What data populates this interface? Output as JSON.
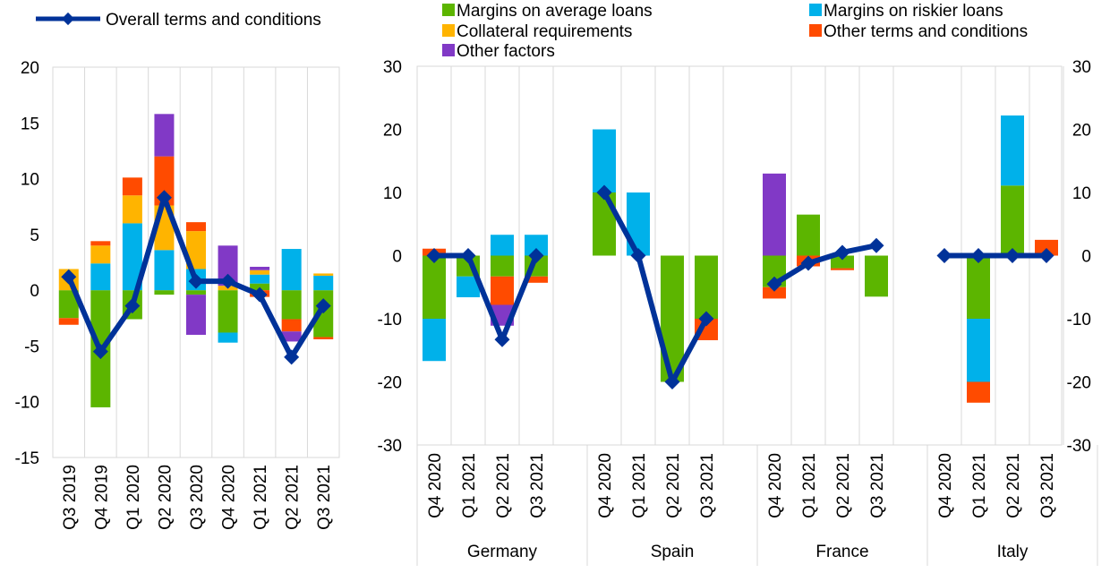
{
  "legend": {
    "line": "Overall terms and conditions",
    "items": [
      {
        "label": "Margins on average loans",
        "color": "#5cb500"
      },
      {
        "label": "Margins on riskier loans",
        "color": "#00b1ea"
      },
      {
        "label": "Collateral requirements",
        "color": "#ffb400"
      },
      {
        "label": "Other terms and conditions",
        "color": "#ff4b00"
      },
      {
        "label": "Other factors",
        "color": "#8139c6"
      }
    ]
  },
  "colors": {
    "margins_average": "#5cb500",
    "margins_riskier": "#00b1ea",
    "collateral": "#ffb400",
    "other_terms": "#ff4b00",
    "other_factors": "#8139c6",
    "line": "#003299"
  },
  "chart_data": [
    {
      "type": "bar",
      "stacked": true,
      "categories": [
        "Q3 2019",
        "Q4 2019",
        "Q1 2020",
        "Q2 2020",
        "Q3 2020",
        "Q4 2020",
        "Q1 2021",
        "Q2 2021",
        "Q3 2021"
      ],
      "ylim": [
        -15,
        20
      ],
      "yticks": [
        "-15",
        "-10",
        "-5",
        "0",
        "5",
        "10",
        "15",
        "20"
      ],
      "series": [
        {
          "name": "Margins on average loans",
          "values": [
            -2.5,
            -10.5,
            -2.6,
            -0.4,
            -0.4,
            -3.8,
            0.6,
            -2.6,
            -4.2
          ]
        },
        {
          "name": "Margins on riskier loans",
          "values": [
            0,
            2.4,
            6.0,
            3.6,
            1.9,
            -0.9,
            0.8,
            3.7,
            1.3
          ]
        },
        {
          "name": "Collateral requirements",
          "values": [
            1.9,
            1.6,
            2.5,
            4.0,
            3.4,
            0.4,
            0.4,
            0,
            0.2
          ]
        },
        {
          "name": "Other terms and conditions",
          "values": [
            -0.6,
            0.4,
            1.6,
            4.4,
            0.8,
            0,
            -0.6,
            -1.1,
            -0.2
          ]
        },
        {
          "name": "Other factors",
          "values": [
            0,
            0,
            0,
            3.8,
            -3.6,
            3.6,
            0.3,
            -0.9,
            0
          ]
        }
      ],
      "line": {
        "name": "Overall terms and conditions",
        "values": [
          1.2,
          -5.5,
          -1.4,
          8.3,
          0.8,
          0.8,
          -0.4,
          -6.0,
          -1.4
        ]
      }
    },
    {
      "type": "bar",
      "stacked": true,
      "ylim": [
        -30,
        30
      ],
      "yticks": [
        "-30",
        "-20",
        "-10",
        "0",
        "10",
        "20",
        "30"
      ],
      "groups": [
        {
          "name": "Germany",
          "categories": [
            "Q4 2020",
            "Q1 2021",
            "Q2 2021",
            "Q3 2021"
          ]
        },
        {
          "name": "Spain",
          "categories": [
            "Q4 2020",
            "Q1 2021",
            "Q2 2021",
            "Q3 2021"
          ]
        },
        {
          "name": "France",
          "categories": [
            "Q4 2020",
            "Q1 2021",
            "Q2 2021",
            "Q3 2021"
          ]
        },
        {
          "name": "Italy",
          "categories": [
            "Q4 2020",
            "Q1 2021",
            "Q2 2021",
            "Q3 2021"
          ]
        }
      ],
      "series": [
        {
          "name": "Margins on average loans",
          "values": [
            -10,
            -3.3,
            -3.3,
            -3.3,
            10,
            0,
            -20,
            -10,
            -5,
            6.5,
            -2,
            -6.5,
            0,
            -10,
            11.1,
            0
          ]
        },
        {
          "name": "Margins on riskier loans",
          "values": [
            -6.7,
            -3.3,
            3.3,
            3.3,
            10,
            10,
            0,
            0,
            0,
            0,
            0,
            0,
            0,
            -10,
            11.1,
            0
          ]
        },
        {
          "name": "Collateral requirements",
          "values": [
            0,
            0,
            0,
            0,
            0,
            0,
            0,
            0,
            0,
            0,
            0,
            0,
            0,
            0,
            0,
            0
          ]
        },
        {
          "name": "Other terms and conditions",
          "values": [
            1.1,
            0,
            -4.5,
            -1.0,
            0,
            0,
            0,
            -3.4,
            -1.8,
            -1.7,
            -0.3,
            0,
            0,
            -3.3,
            0,
            2.5
          ]
        },
        {
          "name": "Other factors",
          "values": [
            0,
            0,
            -3.3,
            0,
            0,
            0,
            0,
            0,
            13,
            0,
            0,
            0,
            0,
            0,
            0,
            0
          ]
        }
      ],
      "line": {
        "name": "Overall terms and conditions",
        "values": [
          0,
          0,
          -13.3,
          0,
          10,
          0,
          -20,
          -10,
          -4.5,
          -1.2,
          0.5,
          1.6,
          0,
          0,
          0,
          0
        ]
      }
    }
  ]
}
